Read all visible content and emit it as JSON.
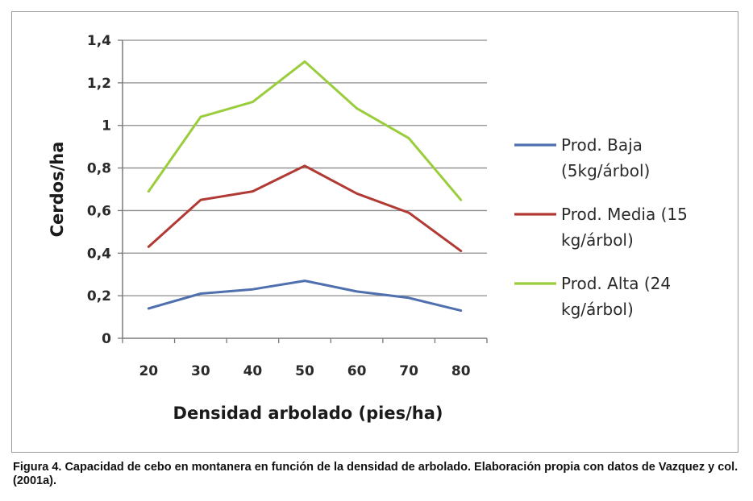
{
  "chart_data": {
    "type": "line",
    "x": [
      20,
      30,
      40,
      50,
      60,
      70,
      80
    ],
    "categories": [
      "20",
      "30",
      "40",
      "50",
      "60",
      "70",
      "80"
    ],
    "ylabel": "Cerdos/ha",
    "xlabel": "Densidad arbolado (pies/ha)",
    "ylim": [
      0,
      1.4
    ],
    "yticks": [
      "0",
      "0,2",
      "0,4",
      "0,6",
      "0,8",
      "1",
      "1,2",
      "1,4"
    ],
    "grid": "horizontal",
    "legend_position": "right",
    "series": [
      {
        "name": "Prod. Baja (5kg/árbol)",
        "legend_lines": [
          "Prod. Baja",
          "(5kg/árbol)"
        ],
        "color": "#4f6fae",
        "values": [
          0.14,
          0.21,
          0.23,
          0.27,
          0.22,
          0.19,
          0.13
        ]
      },
      {
        "name": "Prod. Media (15 kg/árbol)",
        "legend_lines": [
          "Prod. Media (15",
          "kg/árbol)"
        ],
        "color": "#b23a35",
        "values": [
          0.43,
          0.65,
          0.69,
          0.81,
          0.68,
          0.59,
          0.41
        ]
      },
      {
        "name": "Prod. Alta (24 kg/árbol)",
        "legend_lines": [
          "Prod. Alta (24",
          "kg/árbol)"
        ],
        "color": "#9acd3c",
        "values": [
          0.69,
          1.04,
          1.11,
          1.3,
          1.08,
          0.94,
          0.65
        ]
      }
    ]
  },
  "caption": "Figura 4. Capacidad de cebo en montanera en función de la densidad de arbolado. Elaboración propia con datos de Vazquez y col. (2001a)."
}
